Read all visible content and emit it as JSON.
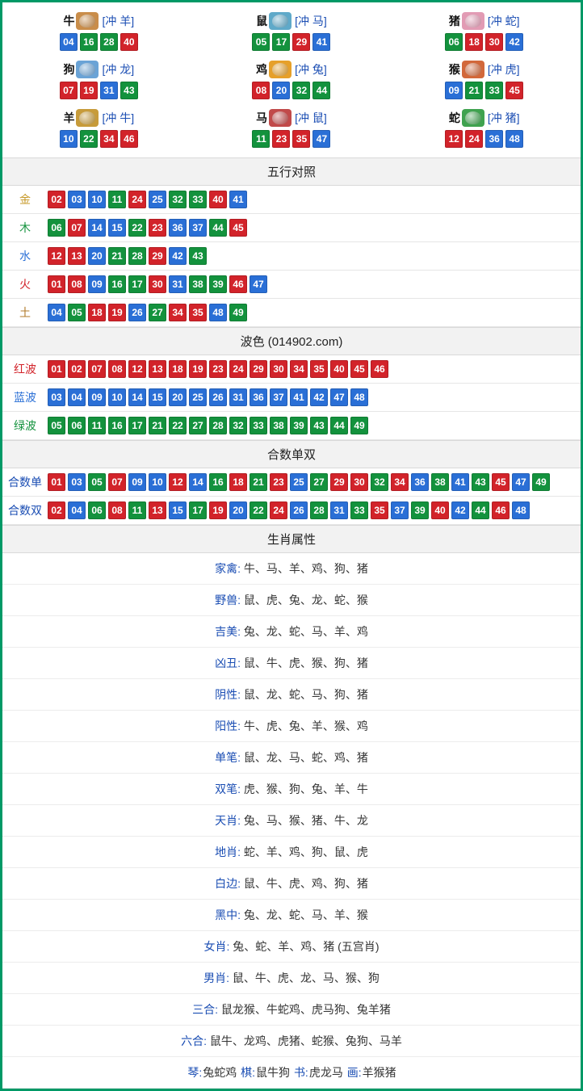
{
  "colors": {
    "border": "#009966",
    "red": "#d2232a",
    "blue": "#2a6fd6",
    "green": "#13923d",
    "header_bg": "#f2f2f2",
    "row_border": "#e6e6e6",
    "link_blue": "#1a4db3"
  },
  "ball_colors": {
    "red_nums": [
      1,
      2,
      7,
      8,
      12,
      13,
      18,
      19,
      23,
      24,
      29,
      30,
      34,
      35,
      40,
      45,
      46
    ],
    "blue_nums": [
      3,
      4,
      9,
      10,
      14,
      15,
      20,
      25,
      26,
      31,
      36,
      37,
      41,
      42,
      47,
      48
    ],
    "green_nums": [
      5,
      6,
      11,
      16,
      17,
      21,
      22,
      27,
      28,
      32,
      33,
      38,
      39,
      43,
      44,
      49
    ]
  },
  "zodiac_icons": {
    "牛": "#c98d4a",
    "鼠": "#5fa9c9",
    "猪": "#e29bb4",
    "狗": "#6aa3d6",
    "鸡": "#e6a02a",
    "猴": "#d2683b",
    "羊": "#c79b3a",
    "马": "#c14a4a",
    "蛇": "#3fa24f"
  },
  "zodiac": [
    {
      "name": "牛",
      "clash": "[冲 羊]",
      "nums": [
        4,
        16,
        28,
        40
      ]
    },
    {
      "name": "鼠",
      "clash": "[冲 马]",
      "nums": [
        5,
        17,
        29,
        41
      ]
    },
    {
      "name": "猪",
      "clash": "[冲 蛇]",
      "nums": [
        6,
        18,
        30,
        42
      ]
    },
    {
      "name": "狗",
      "clash": "[冲 龙]",
      "nums": [
        7,
        19,
        31,
        43
      ]
    },
    {
      "name": "鸡",
      "clash": "[冲 兔]",
      "nums": [
        8,
        20,
        32,
        44
      ]
    },
    {
      "name": "猴",
      "clash": "[冲 虎]",
      "nums": [
        9,
        21,
        33,
        45
      ]
    },
    {
      "name": "羊",
      "clash": "[冲 牛]",
      "nums": [
        10,
        22,
        34,
        46
      ]
    },
    {
      "name": "马",
      "clash": "[冲 鼠]",
      "nums": [
        11,
        23,
        35,
        47
      ]
    },
    {
      "name": "蛇",
      "clash": "[冲 猪]",
      "nums": [
        12,
        24,
        36,
        48
      ]
    }
  ],
  "wuxing": {
    "title": "五行对照",
    "label_colors": {
      "金": "#c79a2a",
      "木": "#13923d",
      "水": "#2a6fd6",
      "火": "#d2232a",
      "土": "#b07a2a"
    },
    "rows": [
      {
        "label": "金",
        "nums": [
          2,
          3,
          10,
          11,
          24,
          25,
          32,
          33,
          40,
          41
        ]
      },
      {
        "label": "木",
        "nums": [
          6,
          7,
          14,
          15,
          22,
          23,
          36,
          37,
          44,
          45
        ]
      },
      {
        "label": "水",
        "nums": [
          12,
          13,
          20,
          21,
          28,
          29,
          42,
          43
        ]
      },
      {
        "label": "火",
        "nums": [
          1,
          8,
          9,
          16,
          17,
          30,
          31,
          38,
          39,
          46,
          47
        ]
      },
      {
        "label": "土",
        "nums": [
          4,
          5,
          18,
          19,
          26,
          27,
          34,
          35,
          48,
          49
        ]
      }
    ]
  },
  "wave": {
    "title": "波色  (014902.com)",
    "label_colors": {
      "红波": "#d2232a",
      "蓝波": "#2a6fd6",
      "绿波": "#13923d"
    },
    "rows": [
      {
        "label": "红波",
        "nums": [
          1,
          2,
          7,
          8,
          12,
          13,
          18,
          19,
          23,
          24,
          29,
          30,
          34,
          35,
          40,
          45,
          46
        ]
      },
      {
        "label": "蓝波",
        "nums": [
          3,
          4,
          9,
          10,
          14,
          15,
          20,
          25,
          26,
          31,
          36,
          37,
          41,
          42,
          47,
          48
        ]
      },
      {
        "label": "绿波",
        "nums": [
          5,
          6,
          11,
          16,
          17,
          21,
          22,
          27,
          28,
          32,
          33,
          38,
          39,
          43,
          44,
          49
        ]
      }
    ]
  },
  "heshu": {
    "title": "合数单双",
    "label_color": "#1a4db3",
    "rows": [
      {
        "label": "合数单",
        "nums": [
          1,
          3,
          5,
          7,
          9,
          10,
          12,
          14,
          16,
          18,
          21,
          23,
          25,
          27,
          29,
          30,
          32,
          34,
          36,
          38,
          41,
          43,
          45,
          47,
          49
        ]
      },
      {
        "label": "合数双",
        "nums": [
          2,
          4,
          6,
          8,
          11,
          13,
          15,
          17,
          19,
          20,
          22,
          24,
          26,
          28,
          31,
          33,
          35,
          37,
          39,
          40,
          42,
          44,
          46,
          48
        ]
      }
    ]
  },
  "attrs": {
    "title": "生肖属性",
    "rows": [
      {
        "key": "家禽",
        "val": "牛、马、羊、鸡、狗、猪"
      },
      {
        "key": "野兽",
        "val": "鼠、虎、兔、龙、蛇、猴"
      },
      {
        "key": "吉美",
        "val": "兔、龙、蛇、马、羊、鸡"
      },
      {
        "key": "凶丑",
        "val": "鼠、牛、虎、猴、狗、猪"
      },
      {
        "key": "阴性",
        "val": "鼠、龙、蛇、马、狗、猪"
      },
      {
        "key": "阳性",
        "val": "牛、虎、兔、羊、猴、鸡"
      },
      {
        "key": "单笔",
        "val": "鼠、龙、马、蛇、鸡、猪"
      },
      {
        "key": "双笔",
        "val": "虎、猴、狗、兔、羊、牛"
      },
      {
        "key": "天肖",
        "val": "兔、马、猴、猪、牛、龙"
      },
      {
        "key": "地肖",
        "val": "蛇、羊、鸡、狗、鼠、虎"
      },
      {
        "key": "白边",
        "val": "鼠、牛、虎、鸡、狗、猪"
      },
      {
        "key": "黑中",
        "val": "兔、龙、蛇、马、羊、猴"
      },
      {
        "key": "女肖",
        "val": "兔、蛇、羊、鸡、猪  (五宫肖)"
      },
      {
        "key": "男肖",
        "val": "鼠、牛、虎、龙、马、猴、狗"
      },
      {
        "key": "三合",
        "val": "鼠龙猴、牛蛇鸡、虎马狗、兔羊猪"
      },
      {
        "key": "六合",
        "val": "鼠牛、龙鸡、虎猪、蛇猴、兔狗、马羊"
      }
    ]
  },
  "bottom": [
    {
      "k": "琴",
      "v": "兔蛇鸡"
    },
    {
      "k": "棋",
      "v": "鼠牛狗"
    },
    {
      "k": "书",
      "v": "虎龙马"
    },
    {
      "k": "画",
      "v": "羊猴猪"
    }
  ]
}
